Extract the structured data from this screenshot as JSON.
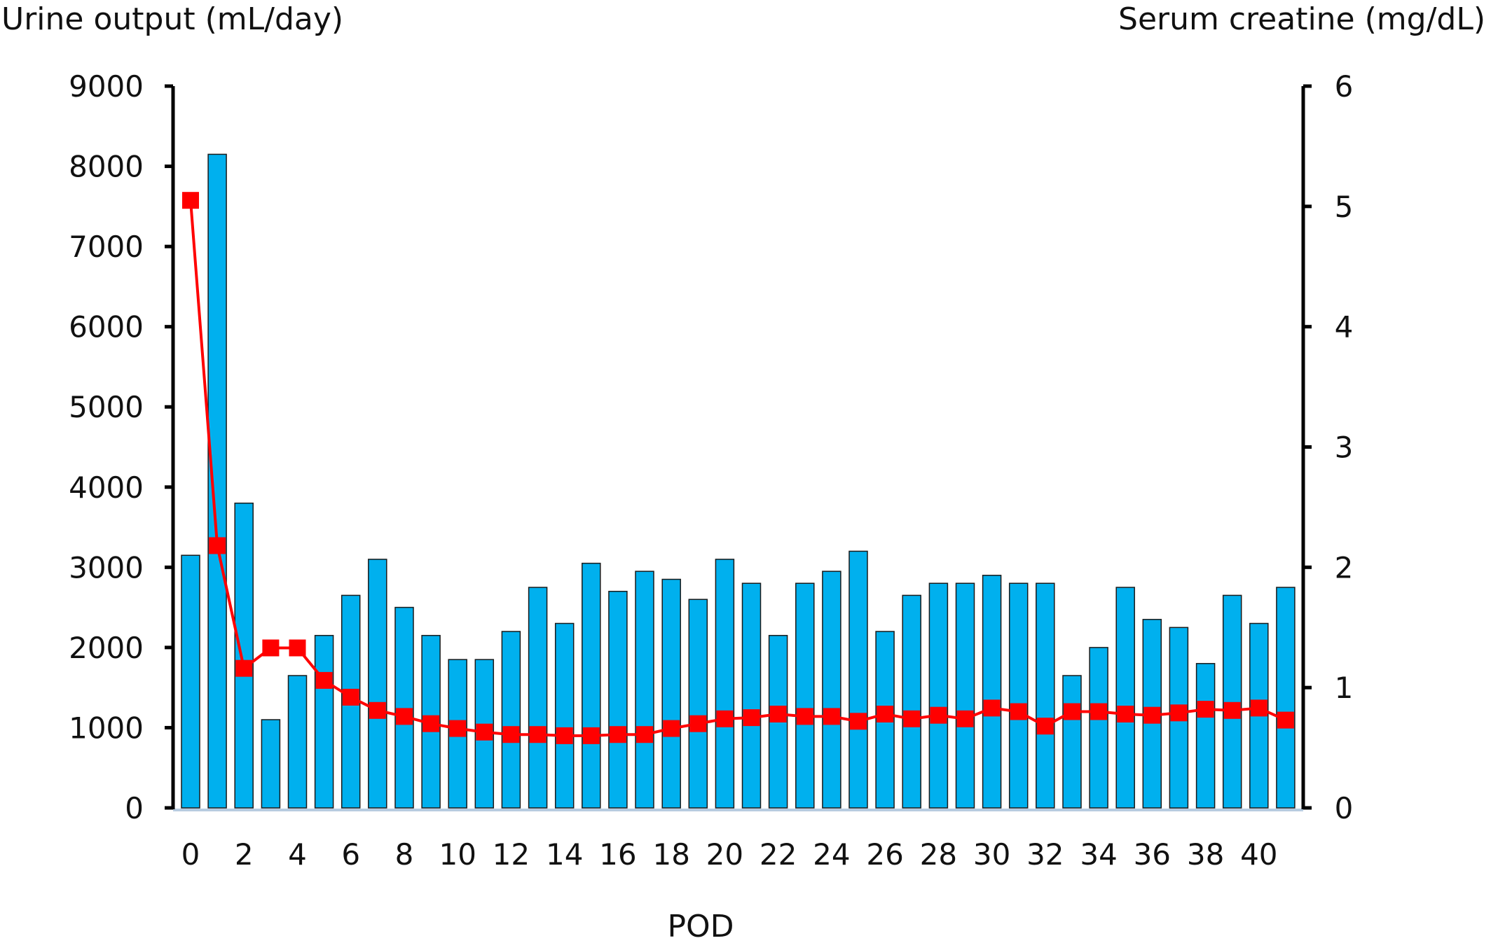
{
  "chart_data": {
    "type": "bar",
    "title": "",
    "xlabel": "POD",
    "ylabel_left": "Urine output (mL/day)",
    "ylabel_right": "Serum creatine (mg/dL)",
    "x": [
      0,
      1,
      2,
      3,
      4,
      5,
      6,
      7,
      8,
      9,
      10,
      11,
      12,
      13,
      14,
      15,
      16,
      17,
      18,
      19,
      20,
      21,
      22,
      23,
      24,
      25,
      26,
      27,
      28,
      29,
      30,
      31,
      32,
      33,
      34,
      35,
      36,
      37,
      38,
      39,
      40,
      41
    ],
    "x_tick_labels": [
      "0",
      "2",
      "4",
      "6",
      "8",
      "10",
      "12",
      "14",
      "16",
      "18",
      "20",
      "22",
      "24",
      "26",
      "28",
      "30",
      "32",
      "34",
      "36",
      "38",
      "40"
    ],
    "ylim_left": [
      0,
      9000
    ],
    "yticks_left": [
      "0",
      "1000",
      "2000",
      "3000",
      "4000",
      "5000",
      "6000",
      "7000",
      "8000",
      "9000"
    ],
    "ylim_right": [
      0,
      6
    ],
    "yticks_right": [
      "0",
      "1",
      "2",
      "3",
      "4",
      "5",
      "6"
    ],
    "grid": false,
    "legend": "none",
    "series": [
      {
        "kind": "bar",
        "axis": "left",
        "color": "#00B0EE",
        "values": [
          3150,
          8150,
          3800,
          1100,
          1650,
          2150,
          2650,
          3100,
          2500,
          2150,
          1850,
          1850,
          2200,
          2750,
          2300,
          3050,
          2700,
          2950,
          2850,
          2600,
          3100,
          2800,
          2150,
          2800,
          2950,
          3200,
          2200,
          2650,
          2800,
          2800,
          2900,
          2800,
          2800,
          1650,
          2000,
          2750,
          2350,
          2250,
          1800,
          2650,
          2300,
          2750
        ]
      },
      {
        "kind": "line",
        "axis": "right",
        "color": "#FF0000",
        "values": [
          5.05,
          2.18,
          1.16,
          1.33,
          1.33,
          1.06,
          0.92,
          0.81,
          0.76,
          0.7,
          0.66,
          0.63,
          0.61,
          0.61,
          0.6,
          0.6,
          0.61,
          0.61,
          0.66,
          0.7,
          0.74,
          0.75,
          0.78,
          0.76,
          0.76,
          0.72,
          0.78,
          0.74,
          0.77,
          0.74,
          0.83,
          0.8,
          0.68,
          0.8,
          0.8,
          0.78,
          0.77,
          0.79,
          0.82,
          0.81,
          0.83,
          0.73
        ]
      }
    ]
  }
}
